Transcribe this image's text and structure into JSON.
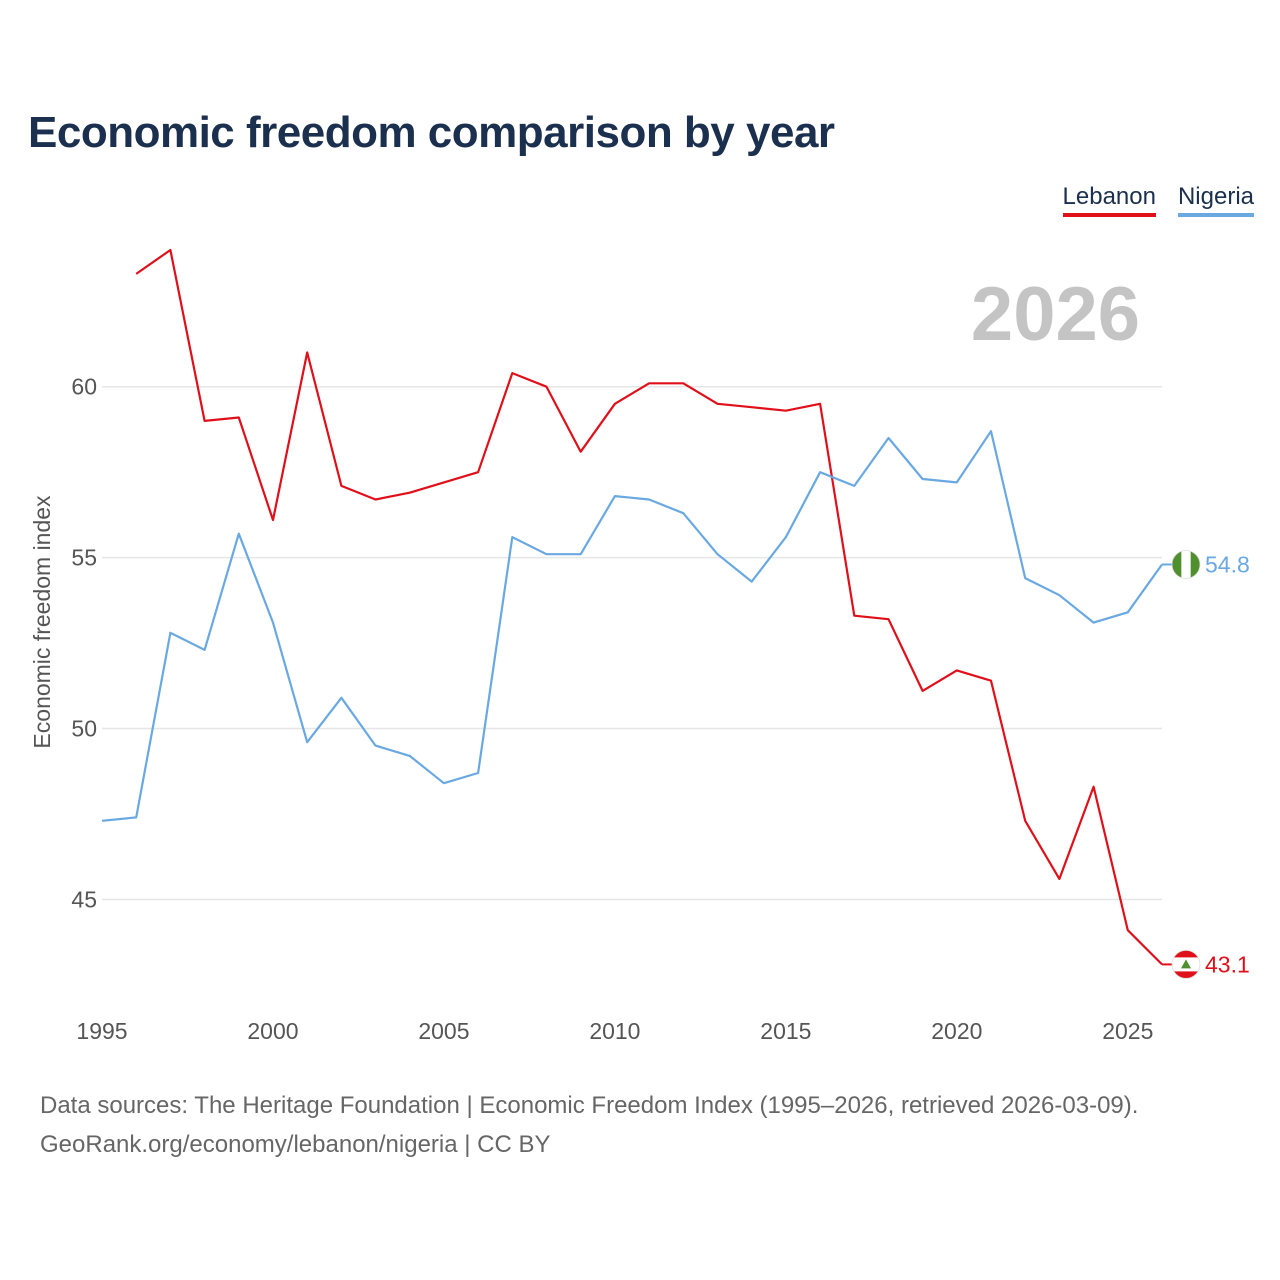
{
  "chart_data": {
    "type": "line",
    "title": "Economic freedom comparison by year",
    "ylabel": "Economic freedom index",
    "xlabel": "",
    "xlim": [
      1995,
      2026
    ],
    "ylim": [
      42,
      64
    ],
    "xticks": [
      1995,
      2000,
      2005,
      2010,
      2015,
      2020,
      2025
    ],
    "yticks": [
      45,
      50,
      55,
      60
    ],
    "watermark_year": "2026",
    "series": [
      {
        "name": "Lebanon",
        "color": "#e0101b",
        "end_label": "43.1",
        "x": [
          1996,
          1997,
          1998,
          1999,
          2000,
          2001,
          2002,
          2003,
          2004,
          2005,
          2006,
          2007,
          2008,
          2009,
          2010,
          2011,
          2012,
          2013,
          2014,
          2015,
          2016,
          2017,
          2018,
          2019,
          2020,
          2021,
          2022,
          2023,
          2024,
          2025,
          2026
        ],
        "values": [
          63.3,
          64.0,
          59.0,
          59.1,
          56.1,
          61.0,
          57.1,
          56.7,
          56.9,
          57.2,
          57.5,
          60.4,
          60.0,
          58.1,
          59.5,
          60.1,
          60.1,
          59.5,
          59.4,
          59.3,
          59.5,
          53.3,
          53.2,
          51.1,
          51.7,
          51.4,
          47.3,
          45.6,
          48.3,
          44.1,
          43.1
        ]
      },
      {
        "name": "Nigeria",
        "color": "#6aa8e2",
        "end_label": "54.8",
        "x": [
          1995,
          1996,
          1997,
          1998,
          1999,
          2000,
          2001,
          2002,
          2003,
          2004,
          2005,
          2006,
          2007,
          2008,
          2009,
          2010,
          2011,
          2012,
          2013,
          2014,
          2015,
          2016,
          2017,
          2018,
          2019,
          2020,
          2021,
          2022,
          2023,
          2024,
          2025,
          2026
        ],
        "values": [
          47.3,
          47.4,
          52.8,
          52.3,
          55.7,
          53.1,
          49.6,
          50.9,
          49.5,
          49.2,
          48.4,
          48.7,
          55.6,
          55.1,
          55.1,
          56.8,
          56.7,
          56.3,
          55.1,
          54.3,
          55.6,
          57.5,
          57.1,
          58.5,
          57.3,
          57.2,
          58.7,
          54.4,
          53.9,
          53.1,
          53.4,
          54.8
        ]
      }
    ]
  },
  "legend": {
    "lebanon": "Lebanon",
    "nigeria": "Nigeria"
  },
  "footer": {
    "line1": "Data sources: The Heritage Foundation | Economic Freedom Index (1995–2026, retrieved 2026-03-09).",
    "line2": "GeoRank.org/economy/lebanon/nigeria | CC BY"
  },
  "colors": {
    "title": "#1b2f4e",
    "grid": "#e6e6e6",
    "axis_text": "#555555",
    "watermark": "#c4c4c4",
    "flag_green": "#4f8f2e"
  }
}
